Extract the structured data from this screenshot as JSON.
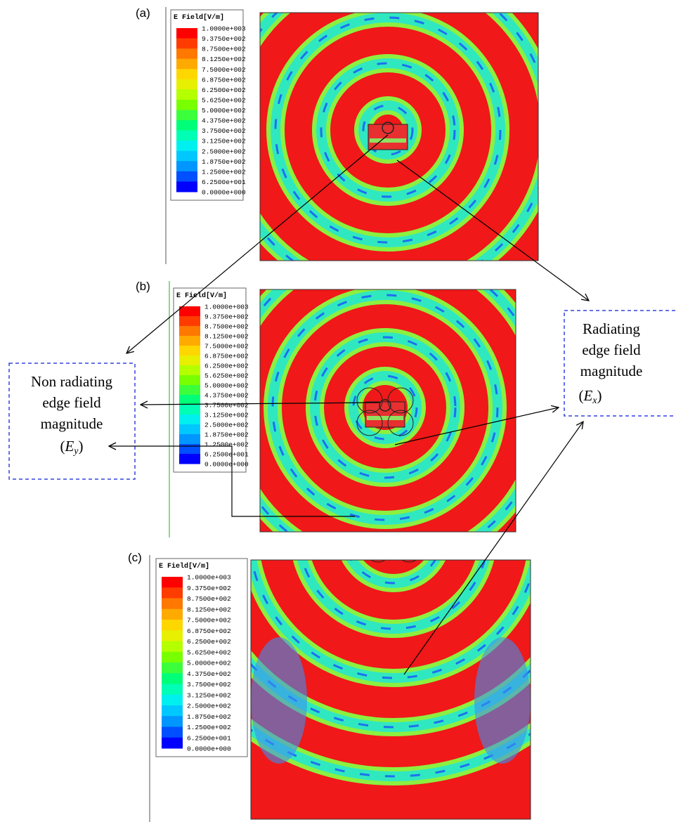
{
  "panels": [
    {
      "label": "(a)",
      "legend": {
        "title": "E Field[V/m]",
        "levels": [
          "1.0000e+003",
          "9.3750e+002",
          "8.7500e+002",
          "8.1250e+002",
          "7.5000e+002",
          "6.8750e+002",
          "6.2500e+002",
          "5.6250e+002",
          "5.0000e+002",
          "4.3750e+002",
          "3.7500e+002",
          "3.1250e+002",
          "2.5000e+002",
          "1.8750e+002",
          "1.2500e+002",
          "6.2500e+001",
          "0.0000e+000"
        ]
      }
    },
    {
      "label": "(b)",
      "legend": {
        "title": "E Field[V/m]",
        "levels": [
          "1.0000e+003",
          "9.3750e+002",
          "8.7500e+002",
          "8.1250e+002",
          "7.5000e+002",
          "6.8750e+002",
          "6.2500e+002",
          "5.6250e+002",
          "5.0000e+002",
          "4.3750e+002",
          "3.7500e+002",
          "3.1250e+002",
          "2.5000e+002",
          "1.8750e+002",
          "1.2500e+002",
          "6.2500e+001",
          "0.0000e+000"
        ]
      }
    },
    {
      "label": "(c)",
      "legend": {
        "title": "E Field[V/m]",
        "levels": [
          "1.0000e+003",
          "9.3750e+002",
          "8.7500e+002",
          "8.1250e+002",
          "7.5000e+002",
          "6.8750e+002",
          "6.2500e+002",
          "5.6250e+002",
          "5.0000e+002",
          "4.3750e+002",
          "3.7500e+002",
          "3.1250e+002",
          "2.5000e+002",
          "1.8750e+002",
          "1.2500e+002",
          "6.2500e+001",
          "0.0000e+000"
        ]
      }
    }
  ],
  "annotations": {
    "non_radiating": {
      "lines": [
        "Non radiating",
        "edge field",
        "magnitude"
      ],
      "symbol": "E",
      "subscript": "y"
    },
    "radiating": {
      "lines": [
        "Radiating",
        "edge field",
        "magnitude"
      ],
      "symbol": "E",
      "subscript": "x"
    }
  }
}
